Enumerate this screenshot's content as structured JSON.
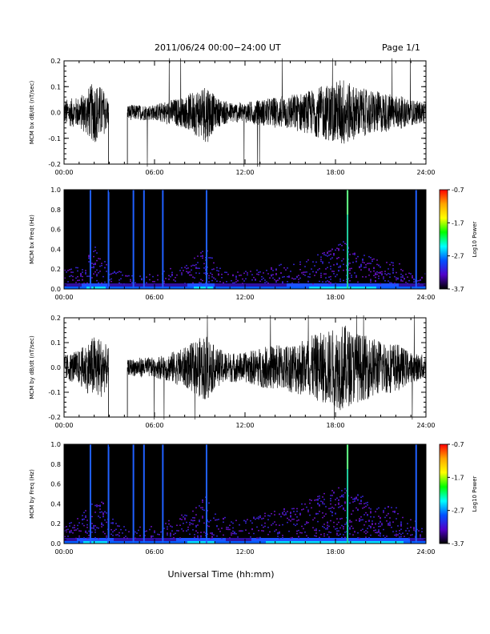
{
  "header": {
    "title": "2011/06/24  00:00−24:00 UT",
    "page": "Page 1/1"
  },
  "footer": {
    "xlabel": "Universal Time (hh:mm)"
  },
  "colorbar": {
    "ticks": [
      "-0.7",
      "-1.7",
      "-2.7",
      "-3.7"
    ],
    "label": "Log10 Power",
    "colors": [
      "#ff0000",
      "#ffa500",
      "#ffff00",
      "#00ff00",
      "#00ffff",
      "#0050ff",
      "#5000c8",
      "#000000"
    ]
  },
  "chart_data": [
    {
      "type": "line",
      "ylabel": "MCM bx dB/dt (nT/sec)",
      "xlim": [
        0,
        24
      ],
      "ylim": [
        -0.2,
        0.2
      ],
      "xticks": [
        "00:00",
        "06:00",
        "12:00",
        "18:00",
        "24:00"
      ],
      "yticks": [
        "-0.2",
        "-0.1",
        "0.0",
        "0.1",
        "0.2"
      ],
      "gaps_hours": [
        [
          2.95,
          4.2
        ]
      ],
      "envelope": [
        [
          0,
          0.05
        ],
        [
          1,
          0.06
        ],
        [
          2,
          0.12
        ],
        [
          2.5,
          0.1
        ],
        [
          2.9,
          0.06
        ],
        [
          4.2,
          0.03
        ],
        [
          5,
          0.03
        ],
        [
          6,
          0.03
        ],
        [
          7,
          0.05
        ],
        [
          8,
          0.06
        ],
        [
          9,
          0.1
        ],
        [
          9.5,
          0.12
        ],
        [
          10,
          0.06
        ],
        [
          11,
          0.04
        ],
        [
          12,
          0.04
        ],
        [
          13,
          0.05
        ],
        [
          14,
          0.06
        ],
        [
          15,
          0.07
        ],
        [
          16,
          0.08
        ],
        [
          17,
          0.1
        ],
        [
          18,
          0.12
        ],
        [
          18.5,
          0.14
        ],
        [
          19,
          0.11
        ],
        [
          20,
          0.09
        ],
        [
          21,
          0.08
        ],
        [
          22,
          0.07
        ],
        [
          23,
          0.05
        ],
        [
          24,
          0.04
        ]
      ]
    },
    {
      "type": "heatmap",
      "ylabel": "MCM bx Freq (Hz)",
      "xlim": [
        0,
        24
      ],
      "ylim": [
        0.0,
        1.0
      ],
      "xticks": [
        "00:00",
        "06:00",
        "12:00",
        "18:00",
        "24:00"
      ],
      "yticks": [
        "0.0",
        "0.2",
        "0.4",
        "0.6",
        "0.8",
        "1.0"
      ],
      "clim": [
        -3.7,
        -0.7
      ],
      "broadband_lines_hours": [
        1.75,
        2.95,
        4.6,
        5.3,
        6.55,
        9.45,
        18.8,
        23.35
      ]
    },
    {
      "type": "line",
      "ylabel": "MCM by dB/dt (nT/sec)",
      "xlim": [
        0,
        24
      ],
      "ylim": [
        -0.2,
        0.2
      ],
      "xticks": [
        "00:00",
        "06:00",
        "12:00",
        "18:00",
        "24:00"
      ],
      "yticks": [
        "-0.2",
        "-0.1",
        "0.0",
        "0.1",
        "0.2"
      ],
      "gaps_hours": [
        [
          2.95,
          4.2
        ]
      ],
      "envelope": [
        [
          0,
          0.05
        ],
        [
          1,
          0.07
        ],
        [
          2,
          0.13
        ],
        [
          2.5,
          0.12
        ],
        [
          2.9,
          0.08
        ],
        [
          4.2,
          0.03
        ],
        [
          5,
          0.04
        ],
        [
          6,
          0.04
        ],
        [
          7,
          0.06
        ],
        [
          8,
          0.08
        ],
        [
          9,
          0.12
        ],
        [
          9.5,
          0.14
        ],
        [
          10,
          0.08
        ],
        [
          11,
          0.06
        ],
        [
          12,
          0.06
        ],
        [
          13,
          0.08
        ],
        [
          14,
          0.09
        ],
        [
          15,
          0.1
        ],
        [
          16,
          0.12
        ],
        [
          17,
          0.14
        ],
        [
          18,
          0.16
        ],
        [
          18.5,
          0.18
        ],
        [
          19,
          0.15
        ],
        [
          20,
          0.13
        ],
        [
          21,
          0.11
        ],
        [
          22,
          0.1
        ],
        [
          23,
          0.06
        ],
        [
          24,
          0.05
        ]
      ]
    },
    {
      "type": "heatmap",
      "ylabel": "MCM by Freq (Hz)",
      "xlim": [
        0,
        24
      ],
      "ylim": [
        0.0,
        1.0
      ],
      "xticks": [
        "00:00",
        "06:00",
        "12:00",
        "18:00",
        "24:00"
      ],
      "yticks": [
        "0.0",
        "0.2",
        "0.4",
        "0.6",
        "0.8",
        "1.0"
      ],
      "clim": [
        -3.7,
        -0.7
      ],
      "broadband_lines_hours": [
        1.75,
        2.95,
        4.6,
        5.3,
        6.55,
        9.45,
        18.8,
        23.35
      ]
    }
  ]
}
